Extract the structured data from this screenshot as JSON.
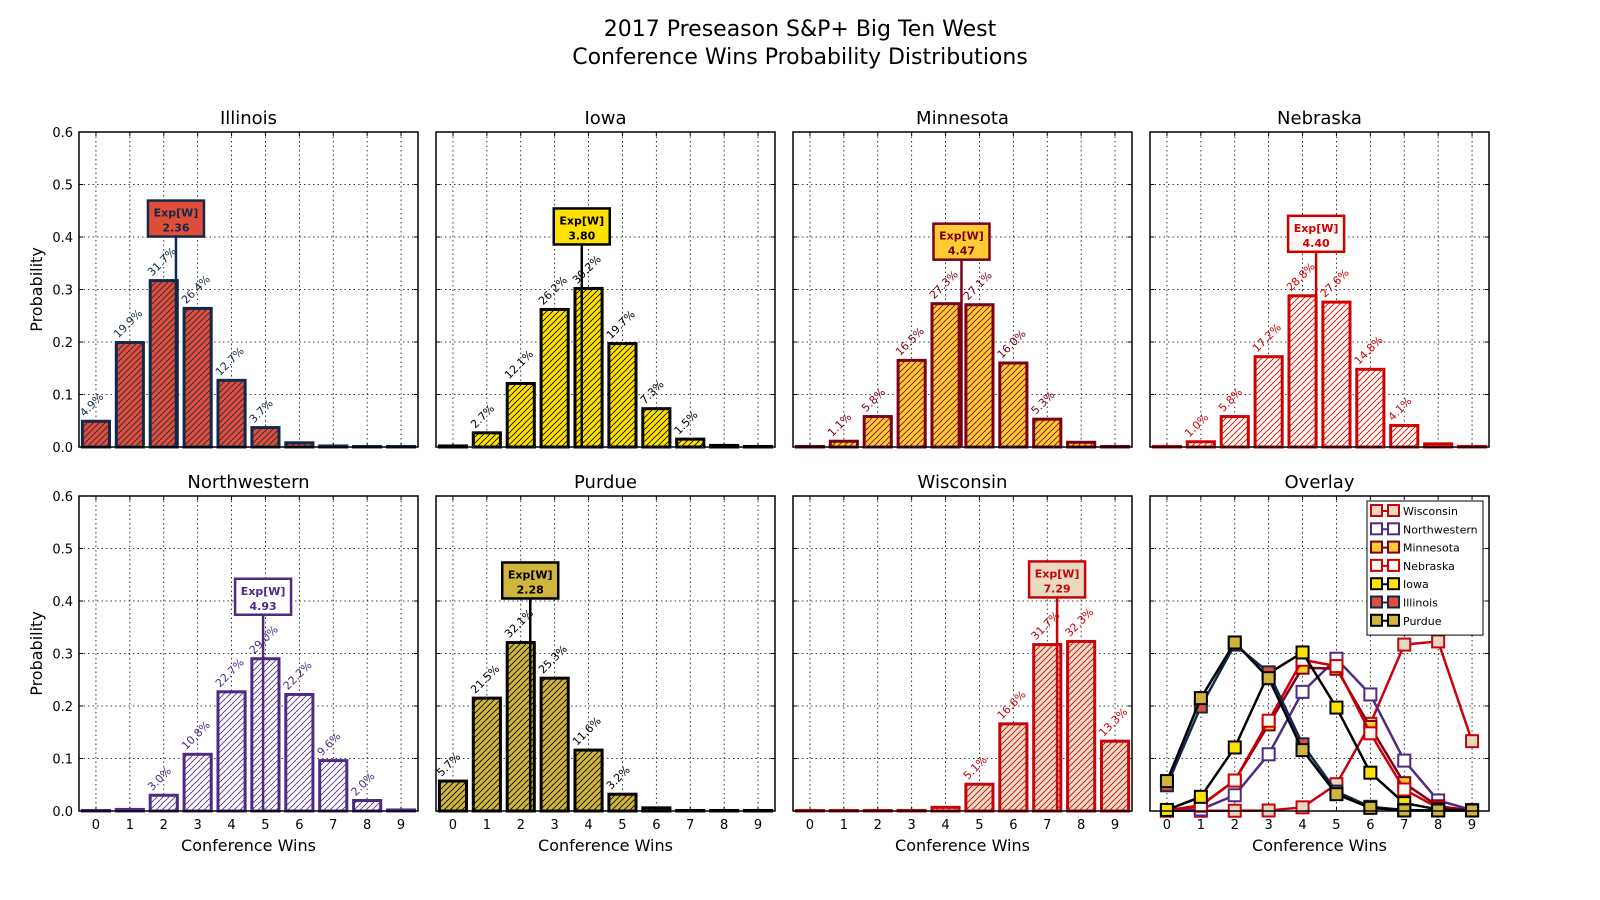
{
  "chart_data": {
    "type": "bar",
    "title": "2017 Preseason S&P+ Big Ten West\nConference Wins Probability Distributions",
    "title_lines": [
      "2017 Preseason S&P+ Big Ten West",
      "Conference Wins Probability Distributions"
    ],
    "xlabel": "Conference Wins",
    "ylabel": "Probability",
    "categories": [
      "0",
      "1",
      "2",
      "3",
      "4",
      "5",
      "6",
      "7",
      "8",
      "9"
    ],
    "ylim": [
      0,
      0.6
    ],
    "yticks": [
      "0.0",
      "0.1",
      "0.2",
      "0.3",
      "0.4",
      "0.5",
      "0.6"
    ],
    "grid": true,
    "exp_label": "Exp[W]",
    "teams": [
      {
        "name": "Illinois",
        "edge": "#13294b",
        "fill": "#e04e39",
        "text": "#13294b",
        "values": [
          0.049,
          0.199,
          0.317,
          0.264,
          0.127,
          0.037,
          0.008,
          0.002,
          0.001,
          0.001
        ],
        "labels": [
          "4.9%",
          "19.9%",
          "31.7%",
          "26.4%",
          "12.7%",
          "3.7%",
          "",
          "",
          "",
          ""
        ],
        "exp_wins": "2.36",
        "exp_value": 2.36
      },
      {
        "name": "Iowa",
        "edge": "#000000",
        "fill": "#ffe100",
        "text": "#000000",
        "values": [
          0.002,
          0.027,
          0.121,
          0.262,
          0.302,
          0.197,
          0.073,
          0.015,
          0.003,
          0.001
        ],
        "labels": [
          "",
          "2.7%",
          "12.1%",
          "26.2%",
          "30.2%",
          "19.7%",
          "7.3%",
          "1.5%",
          "",
          ""
        ],
        "exp_wins": "3.80",
        "exp_value": 3.8
      },
      {
        "name": "Minnesota",
        "edge": "#7a0019",
        "fill": "#ffcc33",
        "text": "#7a0019",
        "values": [
          0.001,
          0.011,
          0.058,
          0.165,
          0.273,
          0.271,
          0.16,
          0.053,
          0.009,
          0.001
        ],
        "labels": [
          "",
          "1.1%",
          "5.8%",
          "16.5%",
          "27.3%",
          "27.1%",
          "16.0%",
          "5.3%",
          "",
          ""
        ],
        "exp_wins": "4.47",
        "exp_value": 4.47
      },
      {
        "name": "Nebraska",
        "edge": "#d00000",
        "fill": "#fdfaf5",
        "text": "#d00000",
        "values": [
          0.001,
          0.01,
          0.058,
          0.172,
          0.288,
          0.276,
          0.148,
          0.041,
          0.006,
          0.001
        ],
        "labels": [
          "",
          "1.0%",
          "5.8%",
          "17.2%",
          "28.8%",
          "27.6%",
          "14.8%",
          "4.1%",
          "",
          ""
        ],
        "exp_wins": "4.40",
        "exp_value": 4.4
      },
      {
        "name": "Northwestern",
        "edge": "#4e2a84",
        "fill": "#ffffff",
        "text": "#4e2a84",
        "values": [
          0.001,
          0.003,
          0.03,
          0.108,
          0.227,
          0.29,
          0.222,
          0.096,
          0.02,
          0.002
        ],
        "labels": [
          "",
          "",
          "3.0%",
          "10.8%",
          "22.7%",
          "29.0%",
          "22.2%",
          "9.6%",
          "2.0%",
          ""
        ],
        "exp_wins": "4.93",
        "exp_value": 4.93
      },
      {
        "name": "Purdue",
        "edge": "#000000",
        "fill": "#cfb53b",
        "text": "#000000",
        "values": [
          0.057,
          0.215,
          0.321,
          0.253,
          0.116,
          0.032,
          0.006,
          0.001,
          0.001,
          0.001
        ],
        "labels": [
          "5.7%",
          "21.5%",
          "32.1%",
          "25.3%",
          "11.6%",
          "3.2%",
          "",
          "",
          "",
          ""
        ],
        "exp_wins": "2.28",
        "exp_value": 2.28
      },
      {
        "name": "Wisconsin",
        "edge": "#c5050c",
        "fill": "#e8d9c0",
        "text": "#c5050c",
        "values": [
          0.0005,
          0.0005,
          0.0005,
          0.001,
          0.007,
          0.051,
          0.166,
          0.317,
          0.323,
          0.133
        ],
        "labels": [
          "",
          "",
          "",
          "",
          "",
          "5.1%",
          "16.6%",
          "31.7%",
          "32.3%",
          "13.3%"
        ],
        "exp_wins": "7.29",
        "exp_value": 7.29
      }
    ],
    "overlay": {
      "title": "Overlay",
      "type": "line",
      "legend_order": [
        "Wisconsin",
        "Northwestern",
        "Minnesota",
        "Nebraska",
        "Iowa",
        "Illinois",
        "Purdue"
      ],
      "legend_placement": "top-right"
    }
  }
}
